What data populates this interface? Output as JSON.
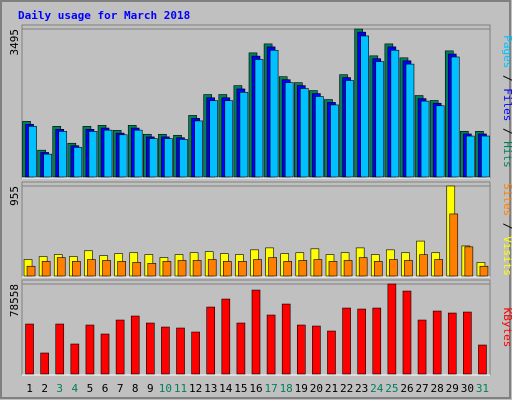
{
  "chart_data": {
    "type": "bar",
    "title": "Daily usage for March 2018",
    "legend_separator": " / ",
    "categories": [
      "1",
      "2",
      "3",
      "4",
      "5",
      "6",
      "7",
      "8",
      "9",
      "10",
      "11",
      "12",
      "13",
      "14",
      "15",
      "16",
      "17",
      "18",
      "19",
      "20",
      "21",
      "22",
      "23",
      "24",
      "25",
      "26",
      "27",
      "28",
      "29",
      "30",
      "31"
    ],
    "category_colors": [
      "#000000",
      "#000000",
      "#00805c",
      "#00805c",
      "#000000",
      "#000000",
      "#000000",
      "#000000",
      "#000000",
      "#00805c",
      "#00805c",
      "#000000",
      "#000000",
      "#000000",
      "#000000",
      "#000000",
      "#00805c",
      "#00805c",
      "#000000",
      "#000000",
      "#000000",
      "#000000",
      "#000000",
      "#00805c",
      "#00805c",
      "#000000",
      "#000000",
      "#000000",
      "#000000",
      "#000000",
      "#00805c"
    ],
    "panels": [
      {
        "ylim": [
          0,
          3495
        ],
        "yticks": [
          3495
        ],
        "series": [
          {
            "name": "Hits",
            "color": "#00805c",
            "values": [
              1299,
              614,
              1181,
              779,
              1181,
              1204,
              1086,
              1204,
              992,
              992,
              968,
              1440,
              1937,
              1937,
              2149,
              2928,
              3141,
              2362,
              2220,
              2031,
              1818,
              2409,
              3495,
              2857,
              3141,
              2810,
              1913,
              1795,
              2975,
              1063,
              1063
            ]
          },
          {
            "name": "Files",
            "color": "#0000ff",
            "values": [
              1230,
              560,
              1110,
              720,
              1110,
              1140,
              1020,
              1140,
              930,
              930,
              910,
              1370,
              1860,
              1860,
              2070,
              2850,
              3070,
              2290,
              2150,
              1960,
              1750,
              2340,
              3420,
              2790,
              3070,
              2740,
              1840,
              1730,
              2900,
              1000,
              1000
            ]
          },
          {
            "name": "Pages",
            "color": "#00c0ff",
            "values": [
              1180,
              520,
              1060,
              680,
              1060,
              1090,
              980,
              1090,
              890,
              890,
              870,
              1310,
              1790,
              1790,
              1990,
              2770,
              2990,
              2220,
              2080,
              1890,
              1690,
              2270,
              3330,
              2720,
              2990,
              2660,
              1780,
              1670,
              2830,
              950,
              950
            ]
          }
        ]
      },
      {
        "ylim": [
          0,
          955
        ],
        "yticks": [
          955
        ],
        "series": [
          {
            "name": "Visits",
            "color": "#ffff00",
            "values": [
              166,
              198,
              219,
              198,
              260,
              208,
              229,
              239,
              219,
              187,
              219,
              239,
              250,
              229,
              219,
              270,
              291,
              229,
              239,
              281,
              219,
              239,
              291,
              219,
              270,
              239,
              364,
              239,
              955,
              312,
              135
            ]
          },
          {
            "name": "Sites",
            "color": "#ff8000",
            "values": [
              94,
              146,
              187,
              146,
              166,
              156,
              146,
              135,
              125,
              146,
              156,
              156,
              166,
              146,
              146,
              166,
              187,
              146,
              156,
              166,
              146,
              156,
              187,
              146,
              166,
              156,
              218,
              166,
              655,
              302,
              94
            ]
          }
        ]
      },
      {
        "ylim": [
          0,
          78558
        ],
        "yticks": [
          78558
        ],
        "series": [
          {
            "name": "KBytes",
            "color": "#ff0000",
            "values": [
              43218,
              17640,
              43218,
              25578,
              42336,
              34398,
              46746,
              50274,
              44100,
              40572,
              39690,
              36162,
              58212,
              65268,
              44100,
              73206,
              51156,
              60858,
              42336,
              41454,
              37044,
              57330,
              56448,
              57330,
              78558,
              72324,
              46746,
              54684,
              52920,
              53802,
              24696
            ]
          }
        ]
      }
    ]
  }
}
